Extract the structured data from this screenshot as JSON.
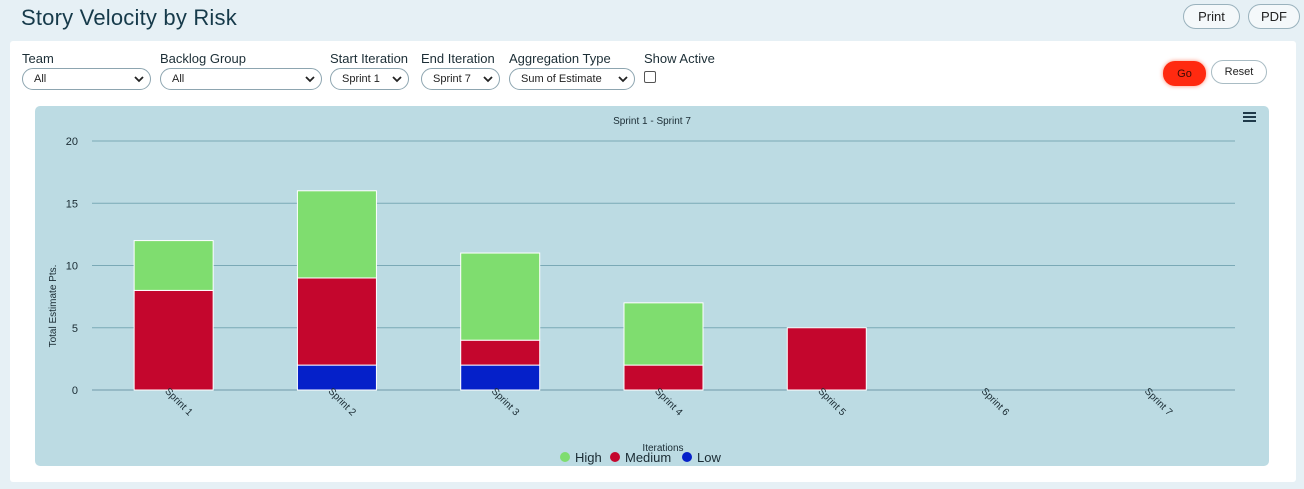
{
  "page": {
    "title": "Story Velocity by Risk",
    "print_label": "Print",
    "pdf_label": "PDF"
  },
  "filters": {
    "team": {
      "label": "Team",
      "value": "All"
    },
    "backlog_group": {
      "label": "Backlog Group",
      "value": "All"
    },
    "start_iteration": {
      "label": "Start Iteration",
      "value": "Sprint 1"
    },
    "end_iteration": {
      "label": "End Iteration",
      "value": "Sprint 7"
    },
    "aggregation_type": {
      "label": "Aggregation Type",
      "value": "Sum of Estimate"
    },
    "show_active": {
      "label": "Show Active",
      "checked": false
    },
    "go_label": "Go",
    "reset_label": "Reset"
  },
  "icons": {
    "chart_menu": "hamburger-menu-icon",
    "dropdown": "chevron-down-icon"
  },
  "colors": {
    "go_button": "#ff2a10",
    "high": "#7fdd6f",
    "medium": "#c4062d",
    "low": "#0520c9",
    "chart_background": "#bcdbe3"
  },
  "chart_data": {
    "type": "bar",
    "stacked": true,
    "title": "Sprint 1 - Sprint 7",
    "xlabel": "Iterations",
    "ylabel": "Total Estimate Pts.",
    "ylim": [
      0,
      20
    ],
    "yticks": [
      0,
      5,
      10,
      15,
      20
    ],
    "grid": true,
    "legend_position": "bottom-center",
    "categories": [
      "Sprint 1",
      "Sprint 2",
      "Sprint 3",
      "Sprint 4",
      "Sprint 5",
      "Sprint 6",
      "Sprint 7"
    ],
    "series": [
      {
        "name": "Low",
        "color": "#0520c9",
        "values": [
          0,
          2,
          2,
          0,
          0,
          0,
          0
        ]
      },
      {
        "name": "Medium",
        "color": "#c4062d",
        "values": [
          8,
          7,
          2,
          2,
          5,
          0,
          0
        ]
      },
      {
        "name": "High",
        "color": "#7fdd6f",
        "values": [
          4,
          7,
          7,
          5,
          0,
          0,
          0
        ]
      }
    ],
    "legend_order": [
      "High",
      "Medium",
      "Low"
    ]
  }
}
